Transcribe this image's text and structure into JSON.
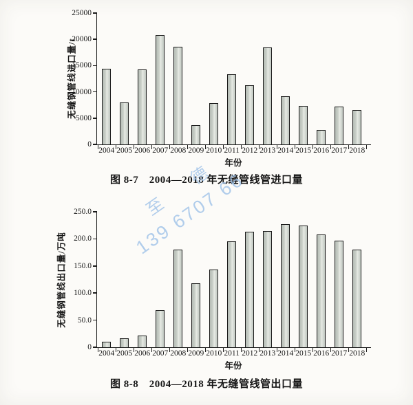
{
  "watermark": {
    "line1": "至 德",
    "line2": "139 6707 66",
    "color": "#9fc2e8"
  },
  "chart_data": [
    {
      "type": "bar",
      "caption": "图 8-7　2004—2018 年无缝管线管进口量",
      "ylabel": "无缝钢管线进口量/t",
      "xlabel": "年份",
      "categories": [
        "2004",
        "2005",
        "2006",
        "2007",
        "2008",
        "2009",
        "2010",
        "2011",
        "2012",
        "2013",
        "2014",
        "2015",
        "2016",
        "2017",
        "2018"
      ],
      "values": [
        14400,
        8000,
        14300,
        20800,
        18600,
        3700,
        7900,
        13300,
        11300,
        18500,
        9100,
        7300,
        2700,
        7200,
        6600
      ],
      "ylim": [
        0,
        25000
      ],
      "ytick_labels": [
        "0",
        "5000",
        "10000",
        "15000",
        "20000",
        "25000"
      ],
      "grid": false,
      "legend": "none",
      "bar_color": "#c9cfc8",
      "bar_border_color": "#1b1b1b"
    },
    {
      "type": "bar",
      "caption": "图 8-8　2004—2018 年无缝管线管出口量",
      "ylabel": "无缝钢管线出口量/万吨",
      "xlabel": "年份",
      "categories": [
        "2004",
        "2005",
        "2006",
        "2007",
        "2008",
        "2009",
        "2010",
        "2011",
        "2012",
        "2013",
        "2014",
        "2015",
        "2016",
        "2017",
        "2018"
      ],
      "values": [
        10,
        17,
        21,
        68,
        180,
        118,
        144,
        195,
        213,
        215,
        227,
        225,
        208,
        197,
        180
      ],
      "ylim": [
        0,
        250
      ],
      "ytick_labels": [
        "0",
        "50.0",
        "100.0",
        "150.0",
        "200.0",
        "250.0"
      ],
      "grid": false,
      "legend": "none",
      "bar_color": "#c9cfc8",
      "bar_border_color": "#1b1b1b"
    }
  ]
}
